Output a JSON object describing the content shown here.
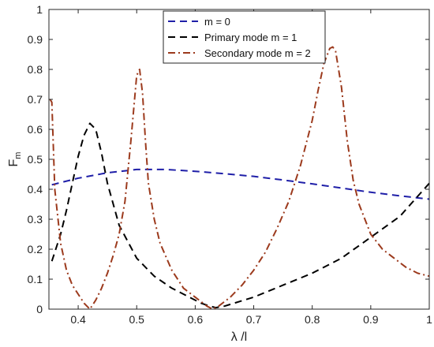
{
  "chart_data": {
    "type": "line",
    "title": "",
    "xlabel": "λ /l",
    "ylabel": "F",
    "ylabel_sub": "m",
    "xlim": [
      0.35,
      1.0
    ],
    "ylim": [
      0,
      1
    ],
    "xticks": [
      0.4,
      0.5,
      0.6,
      0.7,
      0.8,
      0.9,
      1
    ],
    "xtick_labels": [
      "0.4",
      "0.5",
      "0.6",
      "0.7",
      "0.8",
      "0.9",
      "1"
    ],
    "yticks": [
      0,
      0.1,
      0.2,
      0.3,
      0.4,
      0.5,
      0.6,
      0.7,
      0.8,
      0.9,
      1
    ],
    "ytick_labels": [
      "0",
      "0.1",
      "0.2",
      "0.3",
      "0.4",
      "0.5",
      "0.6",
      "0.7",
      "0.8",
      "0.9",
      "1"
    ],
    "grid": false,
    "legend_position": "top-center",
    "series": [
      {
        "name": "m = 0",
        "color": "#1f1fa8",
        "dash": "dashed",
        "x": [
          0.355,
          0.4,
          0.45,
          0.5,
          0.55,
          0.6,
          0.65,
          0.7,
          0.75,
          0.8,
          0.85,
          0.9,
          0.95,
          1.0
        ],
        "y": [
          0.415,
          0.437,
          0.455,
          0.466,
          0.466,
          0.46,
          0.452,
          0.443,
          0.431,
          0.418,
          0.404,
          0.39,
          0.378,
          0.367
        ]
      },
      {
        "name": "Primary mode m = 1",
        "color": "#000000",
        "dash": "dashed",
        "x": [
          0.355,
          0.37,
          0.38,
          0.39,
          0.4,
          0.41,
          0.42,
          0.43,
          0.44,
          0.45,
          0.47,
          0.5,
          0.53,
          0.56,
          0.59,
          0.61,
          0.625,
          0.635,
          0.65,
          0.7,
          0.75,
          0.8,
          0.85,
          0.9,
          0.95,
          1.0
        ],
        "y": [
          0.16,
          0.25,
          0.33,
          0.42,
          0.51,
          0.58,
          0.62,
          0.6,
          0.52,
          0.42,
          0.28,
          0.17,
          0.11,
          0.07,
          0.04,
          0.02,
          0.01,
          0.005,
          0.01,
          0.04,
          0.08,
          0.12,
          0.17,
          0.24,
          0.31,
          0.42
        ]
      },
      {
        "name": "Secondary mode m = 2",
        "color": "#9c3a1d",
        "dash": "dashdot",
        "x": [
          0.352,
          0.355,
          0.36,
          0.37,
          0.38,
          0.39,
          0.4,
          0.41,
          0.42,
          0.43,
          0.44,
          0.45,
          0.46,
          0.47,
          0.48,
          0.49,
          0.5,
          0.505,
          0.51,
          0.515,
          0.52,
          0.53,
          0.54,
          0.56,
          0.58,
          0.6,
          0.62,
          0.63,
          0.64,
          0.66,
          0.68,
          0.7,
          0.72,
          0.74,
          0.76,
          0.78,
          0.8,
          0.81,
          0.82,
          0.83,
          0.835,
          0.84,
          0.85,
          0.86,
          0.87,
          0.88,
          0.9,
          0.92,
          0.94,
          0.96,
          0.98,
          1.0
        ],
        "y": [
          0.7,
          0.69,
          0.4,
          0.22,
          0.13,
          0.08,
          0.05,
          0.02,
          0.0,
          0.03,
          0.07,
          0.12,
          0.18,
          0.25,
          0.36,
          0.56,
          0.78,
          0.8,
          0.72,
          0.56,
          0.42,
          0.3,
          0.22,
          0.13,
          0.07,
          0.04,
          0.01,
          0.0,
          0.01,
          0.04,
          0.08,
          0.13,
          0.19,
          0.27,
          0.36,
          0.48,
          0.63,
          0.73,
          0.82,
          0.87,
          0.875,
          0.86,
          0.74,
          0.56,
          0.43,
          0.35,
          0.25,
          0.2,
          0.17,
          0.14,
          0.12,
          0.11
        ]
      }
    ]
  }
}
